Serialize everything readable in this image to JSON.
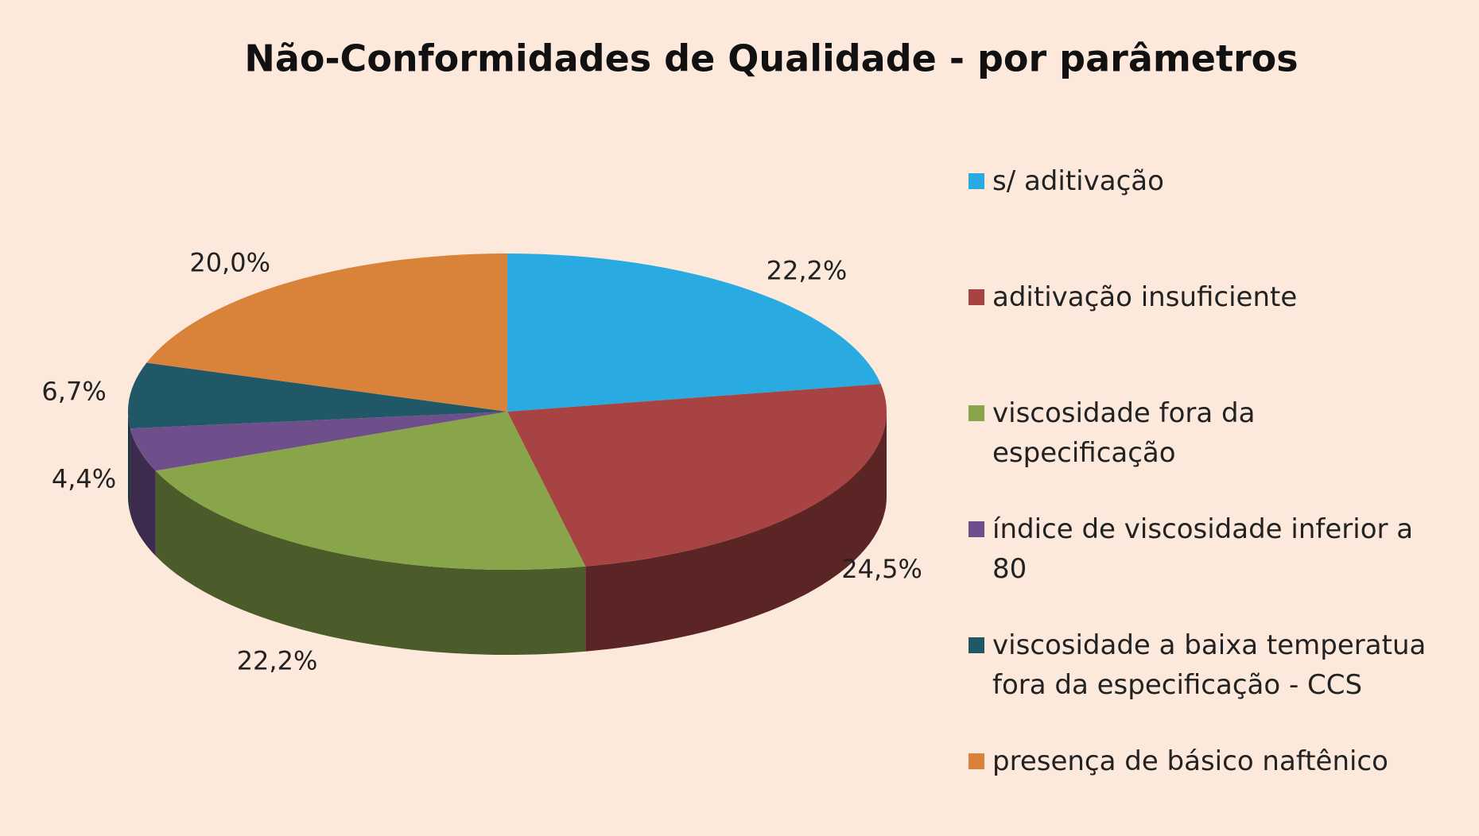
{
  "chart_data": {
    "type": "pie",
    "title": "Não-Conformidades de Qualidade - por parâmetros",
    "categories": [
      "s/ aditivação",
      "aditivação insuficiente",
      "viscosidade fora da especificação",
      "índice de viscosidade inferior a 80",
      "viscosidade a baixa temperatua fora da especificação - CCS",
      "presença de básico naftênico"
    ],
    "values": [
      22.2,
      24.5,
      22.2,
      4.4,
      6.7,
      20.0
    ],
    "value_labels": [
      "22,2%",
      "24,5%",
      "22,2%",
      "4,4%",
      "6,7%",
      "20,0%"
    ],
    "colors": [
      "#29abe2",
      "#a84343",
      "#88a54a",
      "#6f4e8c",
      "#215868",
      "#d98239"
    ],
    "legend": "right"
  }
}
